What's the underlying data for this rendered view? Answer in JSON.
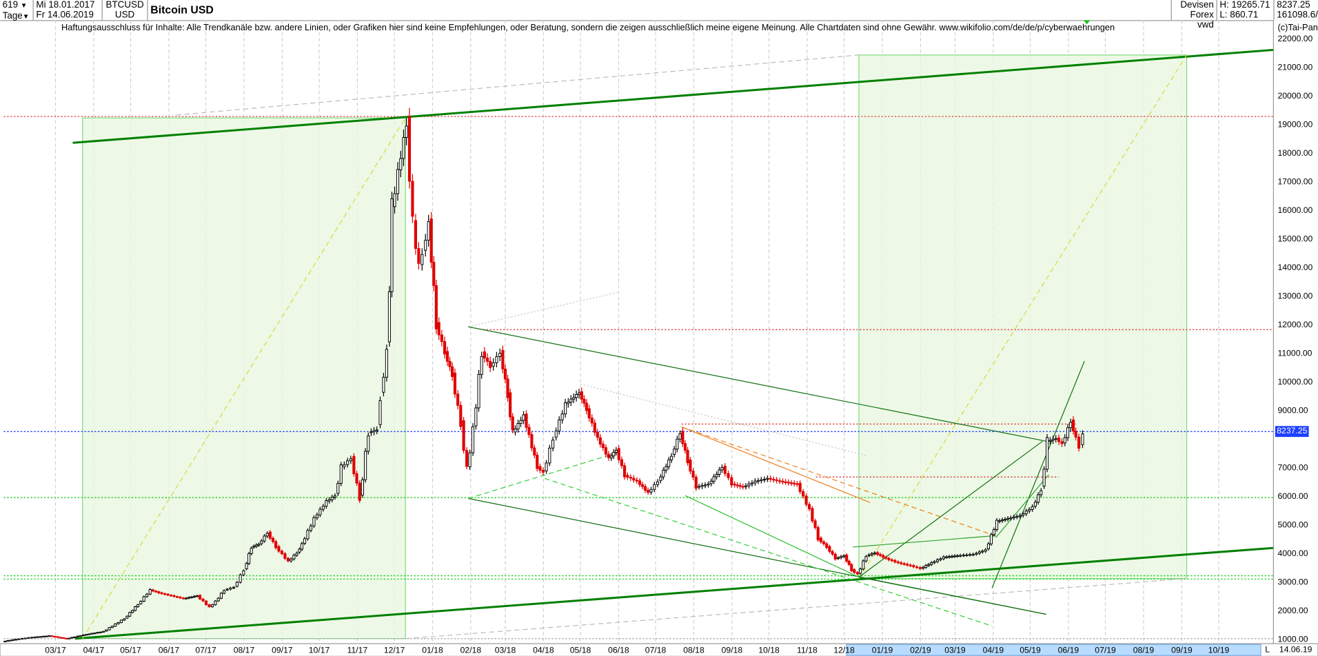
{
  "header": {
    "period_count": "619",
    "period_unit": "Tage",
    "date_from": "Mi 18.01.2017",
    "date_to": "Fr 14.06.2019",
    "symbol": "BTCUSD",
    "currency": "USD",
    "title": "Bitcoin USD",
    "market": "Devisen",
    "source": "Forex vwd",
    "high": "H: 19265.71",
    "low": "L: 860.71",
    "last": "8237.25",
    "volume": "161098.6/",
    "copyright": "(c)Tai-Pan",
    "disclaimer": "Haftungsausschluss für Inhalte: Alle Trendkanäle bzw. andere Linien, oder Grafiken hier sind keine Empfehlungen, oder Beratung, sondern die zeigen ausschließlich meine eigene Meinung. Alle Chartdaten sind ohne Gewähr.  www.wikifolio.com/de/de/p/cyberwaehrungen"
  },
  "footer": {
    "scale_mode": "L",
    "end_date": "14.06.19"
  },
  "colors": {
    "up": "#000000",
    "down": "#e00000",
    "zone_fill": "#e8f8e0",
    "zone_border": "#7fdc7f",
    "trend": "#008000",
    "last_price": "#1e40ff"
  },
  "chart_data": {
    "type": "candlestick",
    "title": "Bitcoin USD",
    "ylim": [
      1000,
      22000
    ],
    "y_ticks": [
      "22000.00",
      "21000.00",
      "20000.00",
      "19000.00",
      "18000.00",
      "17000.00",
      "16000.00",
      "15000.00",
      "14000.00",
      "13000.00",
      "12000.00",
      "11000.00",
      "10000.00",
      "9000.00",
      "8237.25",
      "7000.00",
      "6000.00",
      "5000.00",
      "4000.00",
      "3000.00",
      "2000.00",
      "1000.00"
    ],
    "y_tick_values": [
      22000,
      21000,
      20000,
      19000,
      18000,
      17000,
      16000,
      15000,
      14000,
      13000,
      12000,
      11000,
      10000,
      9000,
      8237.25,
      7000,
      6000,
      5000,
      4000,
      3000,
      2000,
      1000
    ],
    "x_ticks": [
      "03/17",
      "04/17",
      "05/17",
      "06/17",
      "07/17",
      "08/17",
      "09/17",
      "10/17",
      "11/17",
      "12/17",
      "01/18",
      "02/18",
      "03/18",
      "04/18",
      "05/18",
      "06/18",
      "07/18",
      "08/18",
      "09/18",
      "10/18",
      "11/18",
      "12/18",
      "01/19",
      "02/19",
      "03/19",
      "04/19",
      "05/19",
      "06/19",
      "07/19",
      "08/19",
      "09/19",
      "10/19"
    ],
    "grid": "vertical dashed",
    "closes": [
      [
        "2017-01-18",
        900
      ],
      [
        "2017-01-29",
        980
      ],
      [
        "2017-02-11",
        1050
      ],
      [
        "2017-02-25",
        1100
      ],
      [
        "2017-03-11",
        1000
      ],
      [
        "2017-03-27",
        1150
      ],
      [
        "2017-04-10",
        1250
      ],
      [
        "2017-04-27",
        1700
      ],
      [
        "2017-05-08",
        2200
      ],
      [
        "2017-05-18",
        2700
      ],
      [
        "2017-05-25",
        2600
      ],
      [
        "2017-06-04",
        2500
      ],
      [
        "2017-06-14",
        2400
      ],
      [
        "2017-06-25",
        2500
      ],
      [
        "2017-07-05",
        2100
      ],
      [
        "2017-07-10",
        2300
      ],
      [
        "2017-07-17",
        2700
      ],
      [
        "2017-07-25",
        2800
      ],
      [
        "2017-08-02",
        3400
      ],
      [
        "2017-08-08",
        4200
      ],
      [
        "2017-08-14",
        4300
      ],
      [
        "2017-08-21",
        4700
      ],
      [
        "2017-08-28",
        4200
      ],
      [
        "2017-09-07",
        3700
      ],
      [
        "2017-09-14",
        4000
      ],
      [
        "2017-09-18",
        4300
      ],
      [
        "2017-09-28",
        5200
      ],
      [
        "2017-10-08",
        5800
      ],
      [
        "2017-10-15",
        6000
      ],
      [
        "2017-10-20",
        7000
      ],
      [
        "2017-10-28",
        7300
      ],
      [
        "2017-11-04",
        5900
      ],
      [
        "2017-11-11",
        8200
      ],
      [
        "2017-11-18",
        8300
      ],
      [
        "2017-11-21",
        9500
      ],
      [
        "2017-11-26",
        11000
      ],
      [
        "2017-11-30",
        16000
      ],
      [
        "2017-12-05",
        17300
      ],
      [
        "2017-12-12",
        19000
      ],
      [
        "2017-12-17",
        15500
      ],
      [
        "2017-12-22",
        14000
      ],
      [
        "2017-12-25",
        14500
      ],
      [
        "2017-12-30",
        15500
      ],
      [
        "2018-01-05",
        12000
      ],
      [
        "2018-01-12",
        11000
      ],
      [
        "2018-01-18",
        10200
      ],
      [
        "2018-01-25",
        8500
      ],
      [
        "2018-01-30",
        6900
      ],
      [
        "2018-02-04",
        8300
      ],
      [
        "2018-02-11",
        11000
      ],
      [
        "2018-02-18",
        10500
      ],
      [
        "2018-02-26",
        11000
      ],
      [
        "2018-03-04",
        9500
      ],
      [
        "2018-03-08",
        8200
      ],
      [
        "2018-03-17",
        8800
      ],
      [
        "2018-03-28",
        7000
      ],
      [
        "2018-04-02",
        6800
      ],
      [
        "2018-04-10",
        8000
      ],
      [
        "2018-04-20",
        9200
      ],
      [
        "2018-05-01",
        9600
      ],
      [
        "2018-05-07",
        9000
      ],
      [
        "2018-05-16",
        8000
      ],
      [
        "2018-05-25",
        7300
      ],
      [
        "2018-05-31",
        7600
      ],
      [
        "2018-06-07",
        6700
      ],
      [
        "2018-06-17",
        6500
      ],
      [
        "2018-06-26",
        6100
      ],
      [
        "2018-07-04",
        6500
      ],
      [
        "2018-07-15",
        7400
      ],
      [
        "2018-07-22",
        8200
      ],
      [
        "2018-07-28",
        7200
      ],
      [
        "2018-08-04",
        6300
      ],
      [
        "2018-08-14",
        6400
      ],
      [
        "2018-08-25",
        7000
      ],
      [
        "2018-09-02",
        6400
      ],
      [
        "2018-09-11",
        6300
      ],
      [
        "2018-09-21",
        6500
      ],
      [
        "2018-10-01",
        6600
      ],
      [
        "2018-10-11",
        6500
      ],
      [
        "2018-10-25",
        6400
      ],
      [
        "2018-11-04",
        5500
      ],
      [
        "2018-11-11",
        4500
      ],
      [
        "2018-11-18",
        4200
      ],
      [
        "2018-11-25",
        3800
      ],
      [
        "2018-12-02",
        3900
      ],
      [
        "2018-12-08",
        3400
      ],
      [
        "2018-12-13",
        3250
      ],
      [
        "2018-12-20",
        3900
      ],
      [
        "2018-12-27",
        4000
      ],
      [
        "2019-01-05",
        3800
      ],
      [
        "2019-01-15",
        3650
      ],
      [
        "2019-01-25",
        3550
      ],
      [
        "2019-02-02",
        3450
      ],
      [
        "2019-02-11",
        3650
      ],
      [
        "2019-02-21",
        3850
      ],
      [
        "2019-03-04",
        3900
      ],
      [
        "2019-03-17",
        3950
      ],
      [
        "2019-03-27",
        4100
      ],
      [
        "2019-04-05",
        5100
      ],
      [
        "2019-04-14",
        5200
      ],
      [
        "2019-04-24",
        5300
      ],
      [
        "2019-05-04",
        5600
      ],
      [
        "2019-05-11",
        6200
      ],
      [
        "2019-05-16",
        7900
      ],
      [
        "2019-05-23",
        8000
      ],
      [
        "2019-05-28",
        7800
      ],
      [
        "2019-06-04",
        8600
      ],
      [
        "2019-06-08",
        8000
      ],
      [
        "2019-06-11",
        7700
      ],
      [
        "2019-06-14",
        8237.25
      ]
    ],
    "zones": [
      {
        "from": "2017-03-23",
        "to": "2017-12-10",
        "low": 1000,
        "high": 19200
      },
      {
        "from": "2018-12-13",
        "to": "2019-09-05",
        "low": 3100,
        "high": 21400
      }
    ],
    "horizontal_lines": [
      {
        "price": 19250,
        "from": "2017-01-18",
        "to": "2019-11-14",
        "color": "#e05050",
        "style": "dotted"
      },
      {
        "price": 11800,
        "from": "2018-02-11",
        "to": "2019-11-14",
        "color": "#e05050",
        "style": "dotted"
      },
      {
        "price": 8500,
        "from": "2018-07-22",
        "to": "2019-06-07",
        "color": "#e05050",
        "style": "dotted"
      },
      {
        "price": 6650,
        "from": "2018-11-08",
        "to": "2019-05-24",
        "color": "#e05050",
        "style": "dotted"
      },
      {
        "price": 8237.25,
        "from": "2017-01-18",
        "to": "2019-11-14",
        "color": "#1e40ff",
        "style": "dotted"
      },
      {
        "price": 5930,
        "from": "2017-01-18",
        "to": "2019-11-14",
        "color": "#30d030",
        "style": "dotted"
      },
      {
        "price": 3200,
        "from": "2017-01-18",
        "to": "2019-11-14",
        "color": "#30d030",
        "style": "dotted"
      },
      {
        "price": 3080,
        "from": "2017-01-18",
        "to": "2019-11-14",
        "color": "#30d030",
        "style": "dotted"
      },
      {
        "price": 1000,
        "from": "2017-01-18",
        "to": "2019-11-14",
        "color": "#aaaaaa",
        "style": "dotted"
      }
    ],
    "trend_lines": [
      {
        "p1": [
          "2017-03-15",
          18330
        ],
        "p2": [
          "2019-12-21",
          21700
        ],
        "color": "#008000",
        "style": "thick"
      },
      {
        "p1": [
          "2017-03-17",
          1000
        ],
        "p2": [
          "2019-12-21",
          4290
        ],
        "color": "#008000",
        "style": "thick"
      },
      {
        "p1": [
          "2017-03-23",
          1000
        ],
        "p2": [
          "2017-12-10",
          19200
        ],
        "color": "#d8d840",
        "style": "dashed"
      },
      {
        "p1": [
          "2018-12-13",
          3100
        ],
        "p2": [
          "2019-09-05",
          21400
        ],
        "color": "#d8d840",
        "style": "dashed"
      },
      {
        "p1": [
          "2017-06-07",
          19300
        ],
        "p2": [
          "2018-12-13",
          21400
        ],
        "color": "#bbbbbb",
        "style": "dashed"
      },
      {
        "p1": [
          "2017-12-10",
          1000
        ],
        "p2": [
          "2019-09-05",
          3100
        ],
        "color": "#bbbbbb",
        "style": "dashed"
      },
      {
        "p1": [
          "2018-01-30",
          11900
        ],
        "p2": [
          "2018-05-31",
          13100
        ],
        "color": "#cccccc",
        "style": "dotted"
      },
      {
        "p1": [
          "2018-05-01",
          9900
        ],
        "p2": [
          "2018-12-19",
          7400
        ],
        "color": "#cccccc",
        "style": "dotted"
      },
      {
        "p1": [
          "2018-01-30",
          11900
        ],
        "p2": [
          "2019-05-14",
          7900
        ],
        "color": "#107010",
        "style": "solid"
      },
      {
        "p1": [
          "2018-01-30",
          5900
        ],
        "p2": [
          "2019-05-14",
          1850
        ],
        "color": "#107010",
        "style": "solid"
      },
      {
        "p1": [
          "2018-12-13",
          3150
        ],
        "p2": [
          "2019-05-14",
          1850
        ],
        "color": "#107010",
        "style": "solid"
      },
      {
        "p1": [
          "2018-01-30",
          5900
        ],
        "p2": [
          "2018-05-31",
          7500
        ],
        "color": "#30d030",
        "style": "dashed"
      },
      {
        "p1": [
          "2018-04-02",
          6600
        ],
        "p2": [
          "2019-03-31",
          1440
        ],
        "color": "#30d030",
        "style": "dashed"
      },
      {
        "p1": [
          "2018-07-25",
          6000
        ],
        "p2": [
          "2018-12-13",
          3150
        ],
        "color": "#30c030",
        "style": "solid"
      },
      {
        "p1": [
          "2018-07-22",
          8400
        ],
        "p2": [
          "2019-04-03",
          4590
        ],
        "color": "#f08020",
        "style": "dashed"
      },
      {
        "p1": [
          "2018-07-22",
          8400
        ],
        "p2": [
          "2018-12-22",
          5760
        ],
        "color": "#f08020",
        "style": "solid"
      },
      {
        "p1": [
          "2019-03-31",
          2770
        ],
        "p2": [
          "2019-06-14",
          10700
        ],
        "color": "#107010",
        "style": "solid"
      },
      {
        "p1": [
          "2018-12-13",
          3150
        ],
        "p2": [
          "2019-05-11",
          7900
        ],
        "color": "#107010",
        "style": "solid"
      },
      {
        "p1": [
          "2018-12-08",
          4200
        ],
        "p2": [
          "2019-04-03",
          4600
        ],
        "color": "#30a030",
        "style": "solid"
      },
      {
        "p1": [
          "2019-04-03",
          4530
        ],
        "p2": [
          "2019-05-16",
          6730
        ],
        "color": "#30a030",
        "style": "solid"
      }
    ]
  }
}
